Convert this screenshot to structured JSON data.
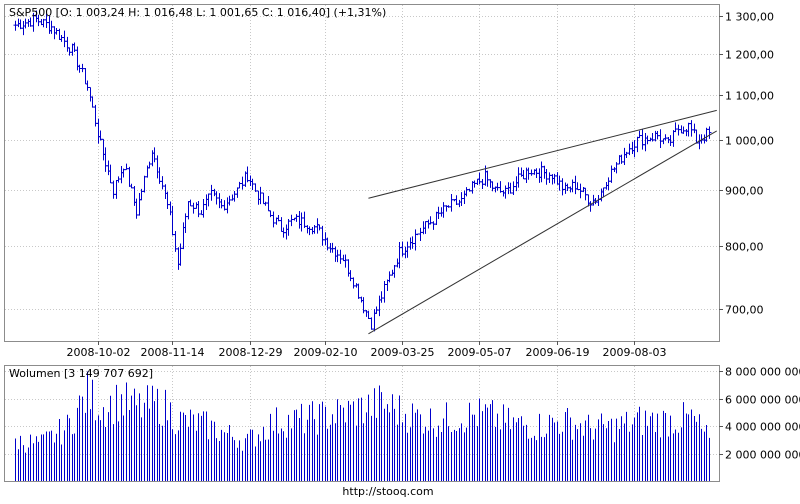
{
  "chart_data": {
    "type": "ohlc",
    "price_panel": {
      "header": "S&P500 [O: 1 003,24  H: 1 016,48  L: 1 001,65  C: 1 016,40] (+1,31%)",
      "y_scale": "log",
      "ylim": [
        655,
        1330
      ],
      "y_ticks": [
        {
          "value": 700,
          "label": "700,00"
        },
        {
          "value": 800,
          "label": "800,00"
        },
        {
          "value": 900,
          "label": "900,00"
        },
        {
          "value": 1000,
          "label": "1 000,00"
        },
        {
          "value": 1100,
          "label": "1 100,00"
        },
        {
          "value": 1200,
          "label": "1 200,00"
        },
        {
          "value": 1300,
          "label": "1 300,00"
        }
      ],
      "x_ticks": [
        {
          "index": 32,
          "label": "2008-10-02"
        },
        {
          "index": 61,
          "label": "2008-11-14"
        },
        {
          "index": 91,
          "label": "2008-12-29"
        },
        {
          "index": 120,
          "label": "2009-02-10"
        },
        {
          "index": 150,
          "label": "2009-03-25"
        },
        {
          "index": 180,
          "label": "2009-05-07"
        },
        {
          "index": 210,
          "label": "2009-06-19"
        },
        {
          "index": 240,
          "label": "2009-08-03"
        }
      ],
      "n_bars": 270,
      "close_keypoints": [
        {
          "i": 0,
          "v": 1275
        },
        {
          "i": 8,
          "v": 1290
        },
        {
          "i": 14,
          "v": 1270
        },
        {
          "i": 22,
          "v": 1210
        },
        {
          "i": 28,
          "v": 1120
        },
        {
          "i": 33,
          "v": 990
        },
        {
          "i": 38,
          "v": 900
        },
        {
          "i": 42,
          "v": 950
        },
        {
          "i": 47,
          "v": 860
        },
        {
          "i": 50,
          "v": 920
        },
        {
          "i": 53,
          "v": 980
        },
        {
          "i": 57,
          "v": 910
        },
        {
          "i": 60,
          "v": 850
        },
        {
          "i": 63,
          "v": 770
        },
        {
          "i": 67,
          "v": 880
        },
        {
          "i": 72,
          "v": 860
        },
        {
          "i": 76,
          "v": 890
        },
        {
          "i": 80,
          "v": 870
        },
        {
          "i": 86,
          "v": 900
        },
        {
          "i": 90,
          "v": 930
        },
        {
          "i": 93,
          "v": 900
        },
        {
          "i": 98,
          "v": 860
        },
        {
          "i": 103,
          "v": 830
        },
        {
          "i": 108,
          "v": 845
        },
        {
          "i": 113,
          "v": 840
        },
        {
          "i": 117,
          "v": 830
        },
        {
          "i": 122,
          "v": 800
        },
        {
          "i": 127,
          "v": 780
        },
        {
          "i": 131,
          "v": 745
        },
        {
          "i": 135,
          "v": 705
        },
        {
          "i": 138,
          "v": 680
        },
        {
          "i": 141,
          "v": 710
        },
        {
          "i": 145,
          "v": 750
        },
        {
          "i": 149,
          "v": 790
        },
        {
          "i": 153,
          "v": 810
        },
        {
          "i": 158,
          "v": 830
        },
        {
          "i": 163,
          "v": 850
        },
        {
          "i": 168,
          "v": 870
        },
        {
          "i": 173,
          "v": 880
        },
        {
          "i": 178,
          "v": 910
        },
        {
          "i": 182,
          "v": 925
        },
        {
          "i": 186,
          "v": 900
        },
        {
          "i": 190,
          "v": 895
        },
        {
          "i": 195,
          "v": 920
        },
        {
          "i": 199,
          "v": 940
        },
        {
          "i": 204,
          "v": 935
        },
        {
          "i": 208,
          "v": 930
        },
        {
          "i": 213,
          "v": 900
        },
        {
          "i": 217,
          "v": 910
        },
        {
          "i": 220,
          "v": 895
        },
        {
          "i": 223,
          "v": 880
        },
        {
          "i": 226,
          "v": 885
        },
        {
          "i": 229,
          "v": 920
        },
        {
          "i": 233,
          "v": 950
        },
        {
          "i": 237,
          "v": 980
        },
        {
          "i": 241,
          "v": 1000
        },
        {
          "i": 245,
          "v": 1005
        },
        {
          "i": 249,
          "v": 1010
        },
        {
          "i": 253,
          "v": 990
        },
        {
          "i": 257,
          "v": 1025
        },
        {
          "i": 261,
          "v": 1030
        },
        {
          "i": 264,
          "v": 1000
        },
        {
          "i": 266,
          "v": 1005
        },
        {
          "i": 269,
          "v": 1016.4
        }
      ],
      "trendlines": [
        {
          "from": {
            "i": 137,
            "v": 885
          },
          "to": {
            "i": 272,
            "v": 1065
          }
        },
        {
          "from": {
            "i": 137,
            "v": 665
          },
          "to": {
            "i": 272,
            "v": 1020
          }
        }
      ]
    },
    "volume_panel": {
      "header": "Wolumen [3 149 707 692]",
      "ylim": [
        0,
        8400000000
      ],
      "y_ticks": [
        {
          "value": 2000000000,
          "label": "2 000 000 000"
        },
        {
          "value": 4000000000,
          "label": "4 000 000 000"
        },
        {
          "value": 6000000000,
          "label": "6 000 000 000"
        },
        {
          "value": 8000000000,
          "label": "8 000 000 000"
        }
      ],
      "keypoints": [
        {
          "i": 0,
          "v": 3000000000.0
        },
        {
          "i": 10,
          "v": 2800000000.0
        },
        {
          "i": 20,
          "v": 4000000000.0
        },
        {
          "i": 28,
          "v": 6500000000.0
        },
        {
          "i": 34,
          "v": 5500000000.0
        },
        {
          "i": 40,
          "v": 6000000000.0
        },
        {
          "i": 48,
          "v": 5500000000.0
        },
        {
          "i": 56,
          "v": 5800000000.0
        },
        {
          "i": 64,
          "v": 4500000000.0
        },
        {
          "i": 72,
          "v": 4300000000.0
        },
        {
          "i": 82,
          "v": 3500000000.0
        },
        {
          "i": 90,
          "v": 3000000000.0
        },
        {
          "i": 100,
          "v": 4400000000.0
        },
        {
          "i": 112,
          "v": 4600000000.0
        },
        {
          "i": 124,
          "v": 5000000000.0
        },
        {
          "i": 134,
          "v": 5400000000.0
        },
        {
          "i": 142,
          "v": 5800000000.0
        },
        {
          "i": 152,
          "v": 5000000000.0
        },
        {
          "i": 162,
          "v": 4500000000.0
        },
        {
          "i": 172,
          "v": 4800000000.0
        },
        {
          "i": 182,
          "v": 5000000000.0
        },
        {
          "i": 192,
          "v": 4300000000.0
        },
        {
          "i": 202,
          "v": 4100000000.0
        },
        {
          "i": 212,
          "v": 4500000000.0
        },
        {
          "i": 222,
          "v": 4000000000.0
        },
        {
          "i": 232,
          "v": 4000000000.0
        },
        {
          "i": 242,
          "v": 4500000000.0
        },
        {
          "i": 252,
          "v": 4500000000.0
        },
        {
          "i": 262,
          "v": 4700000000.0
        },
        {
          "i": 269,
          "v": 3150000000.0
        }
      ]
    },
    "footer": "http://stooq.com"
  }
}
